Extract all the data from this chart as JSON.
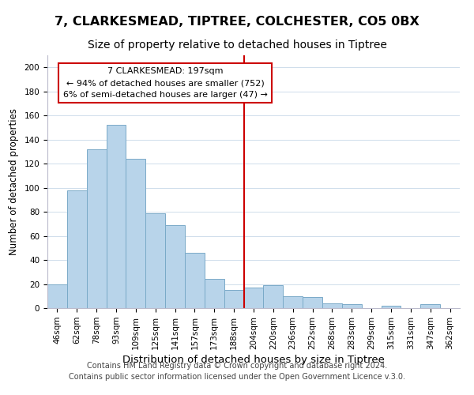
{
  "title": "7, CLARKESMEAD, TIPTREE, COLCHESTER, CO5 0BX",
  "subtitle": "Size of property relative to detached houses in Tiptree",
  "xlabel": "Distribution of detached houses by size in Tiptree",
  "ylabel": "Number of detached properties",
  "bar_labels": [
    "46sqm",
    "62sqm",
    "78sqm",
    "93sqm",
    "109sqm",
    "125sqm",
    "141sqm",
    "157sqm",
    "173sqm",
    "188sqm",
    "204sqm",
    "220sqm",
    "236sqm",
    "252sqm",
    "268sqm",
    "283sqm",
    "299sqm",
    "315sqm",
    "331sqm",
    "347sqm",
    "362sqm"
  ],
  "bar_heights": [
    20,
    98,
    132,
    152,
    124,
    79,
    69,
    46,
    24,
    15,
    17,
    19,
    10,
    9,
    4,
    3,
    0,
    2,
    0,
    3,
    0
  ],
  "bar_color": "#b8d4ea",
  "bar_edge_color": "#7aaac8",
  "vline_x_index": 10,
  "vline_color": "#cc0000",
  "annotation_title": "7 CLARKESMEAD: 197sqm",
  "annotation_line1": "← 94% of detached houses are smaller (752)",
  "annotation_line2": "6% of semi-detached houses are larger (47) →",
  "annotation_box_edge": "#cc0000",
  "annotation_box_fill": "#ffffff",
  "ylim": [
    0,
    210
  ],
  "footer1": "Contains HM Land Registry data © Crown copyright and database right 2024.",
  "footer2": "Contains public sector information licensed under the Open Government Licence v.3.0.",
  "title_fontsize": 11.5,
  "subtitle_fontsize": 10,
  "xlabel_fontsize": 9.5,
  "ylabel_fontsize": 8.5,
  "tick_fontsize": 7.5,
  "footer_fontsize": 7,
  "annotation_fontsize": 8
}
